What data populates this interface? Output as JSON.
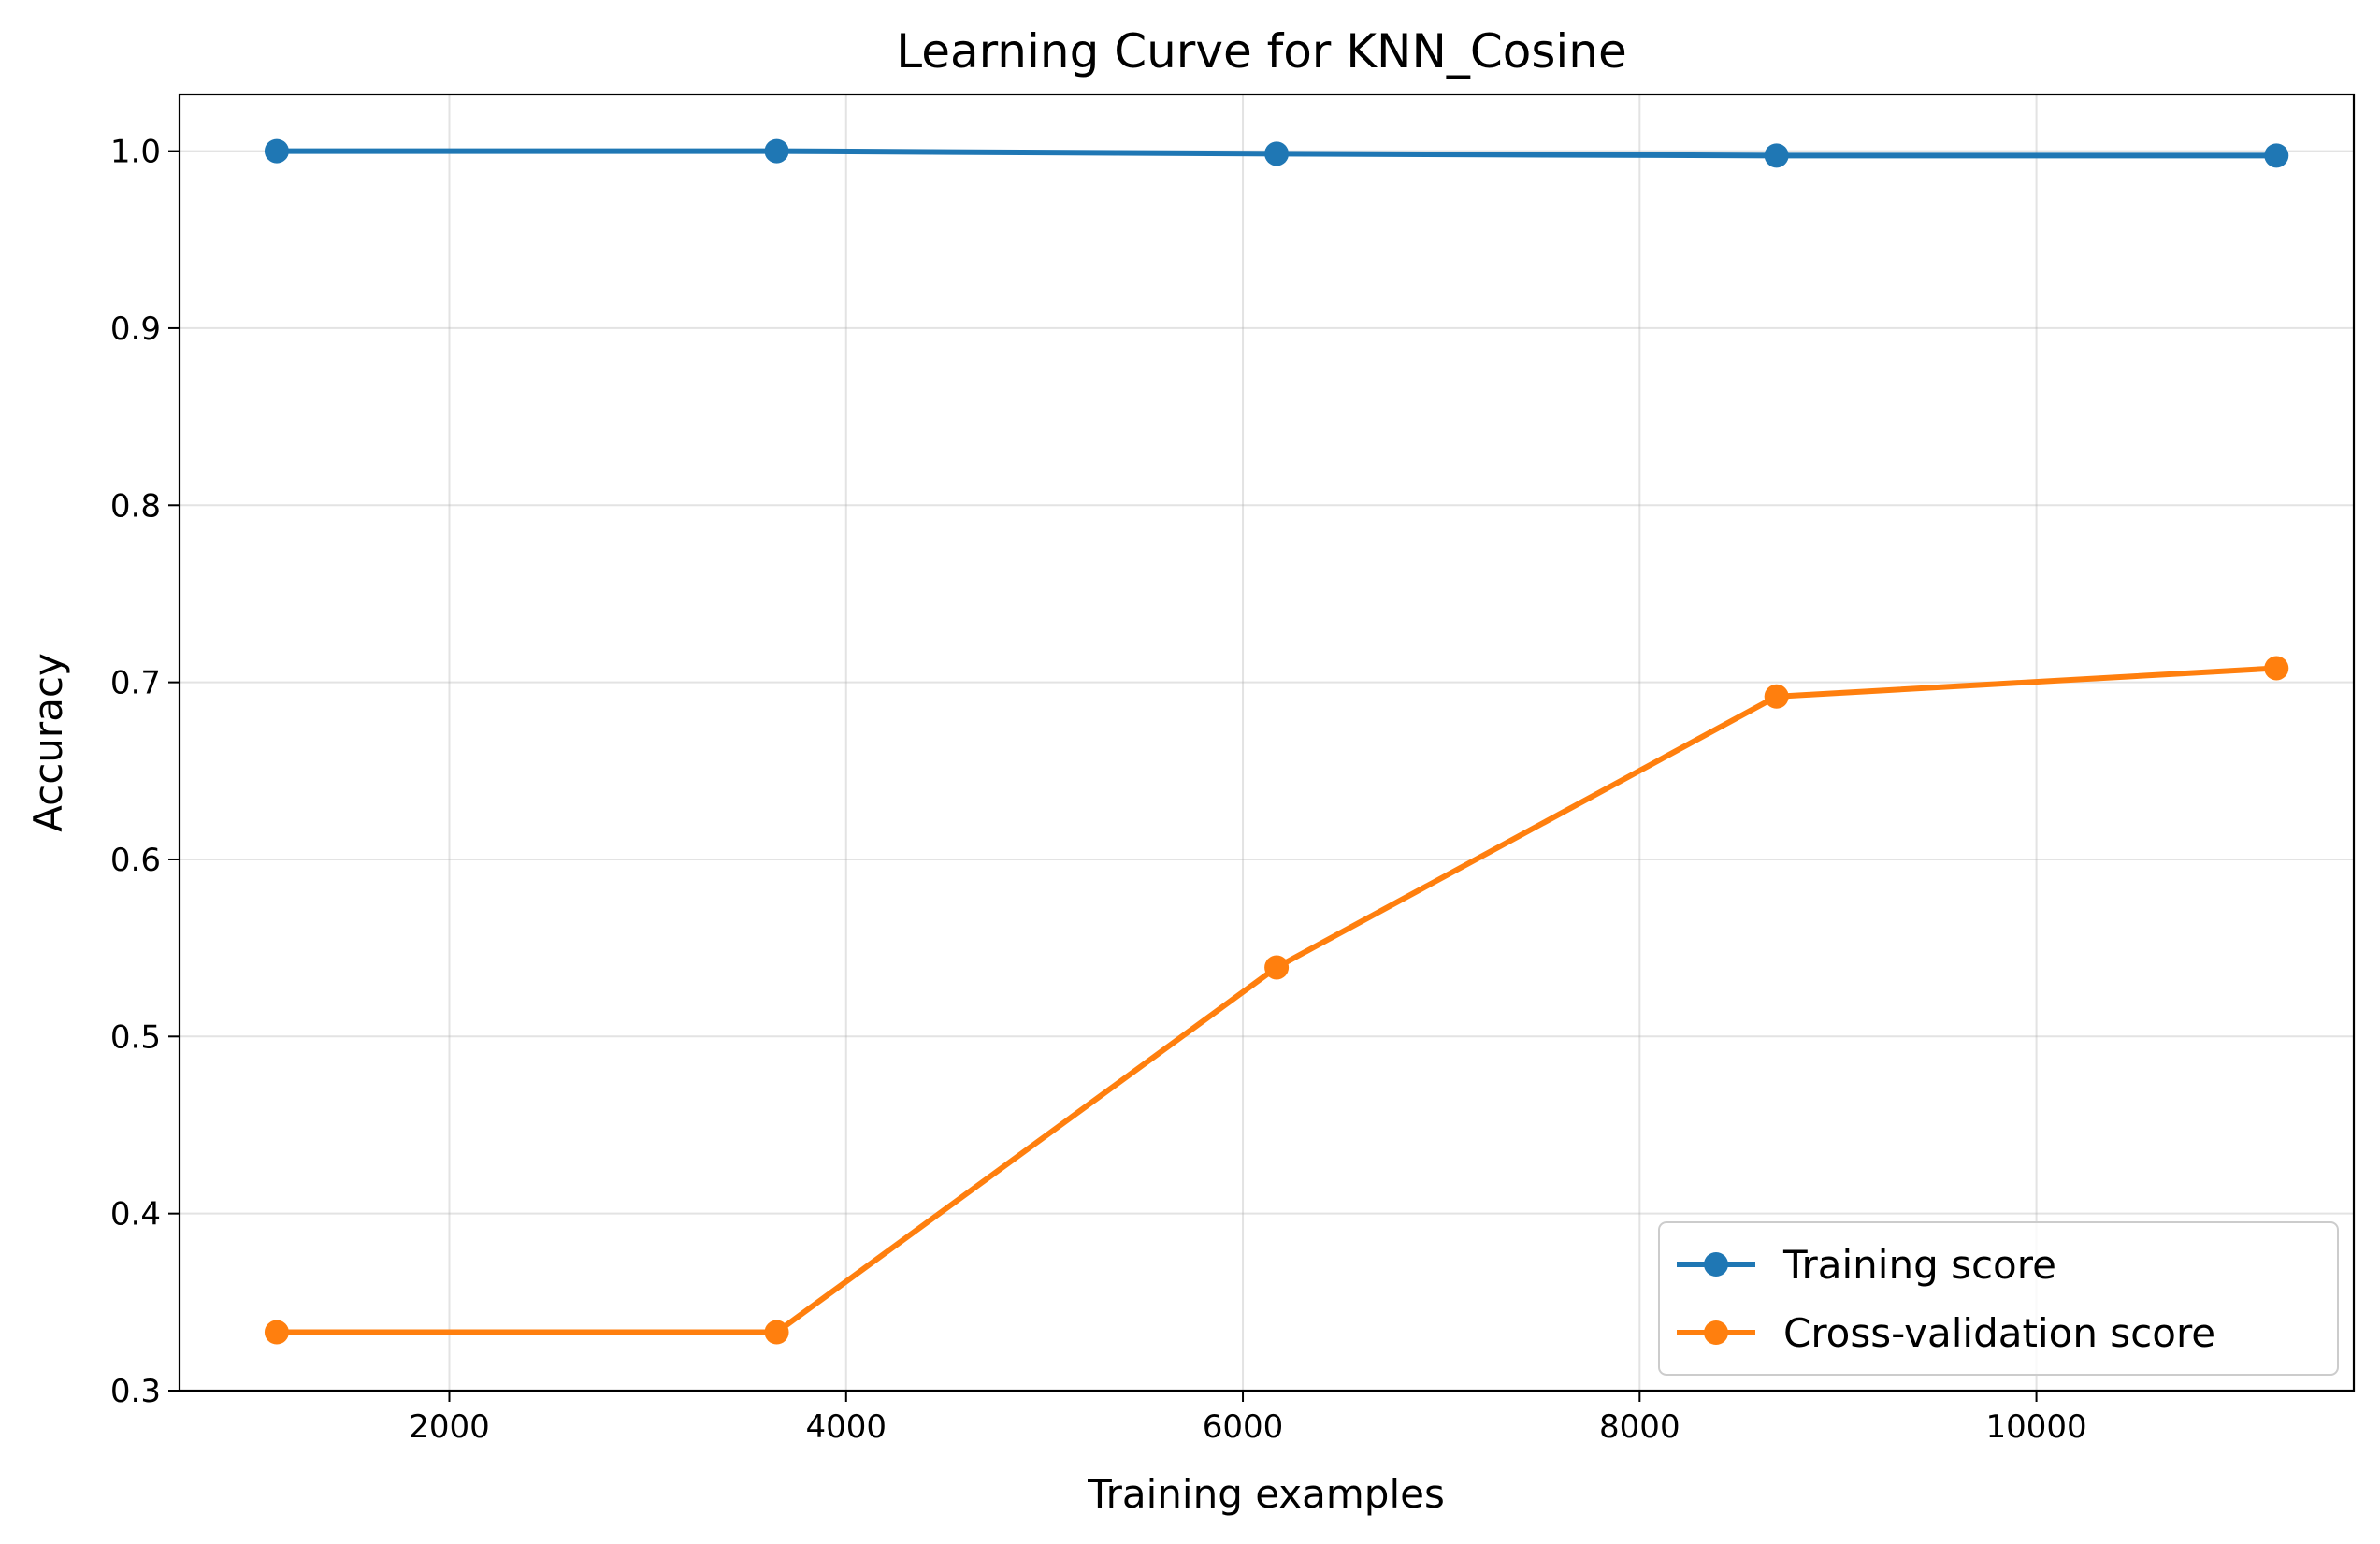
{
  "chart_data": {
    "type": "line",
    "title": "Learning Curve for KNN_Cosine",
    "xlabel": "Training examples",
    "ylabel": "Accuracy",
    "xlim": [
      640,
      11600
    ],
    "ylim": [
      0.3,
      1.032
    ],
    "xticks": [
      2000,
      4000,
      6000,
      8000,
      10000
    ],
    "xtick_labels": [
      "2000",
      "4000",
      "6000",
      "8000",
      "10000"
    ],
    "yticks": [
      0.3,
      0.4,
      0.5,
      0.6,
      0.7,
      0.8,
      0.9,
      1.0
    ],
    "ytick_labels": [
      "0.3",
      "0.4",
      "0.5",
      "0.6",
      "0.7",
      "0.8",
      "0.9",
      "1.0"
    ],
    "grid": true,
    "legend_position": "lower-right",
    "x": [
      1130,
      3650,
      6170,
      8690,
      11210
    ],
    "series": [
      {
        "name": "Training score",
        "color": "#1f77b4",
        "values": [
          1.0,
          1.0,
          0.9985,
          0.9975,
          0.9975
        ]
      },
      {
        "name": "Cross-validation score",
        "color": "#ff7f0e",
        "values": [
          0.333,
          0.333,
          0.539,
          0.692,
          0.708
        ]
      }
    ]
  }
}
